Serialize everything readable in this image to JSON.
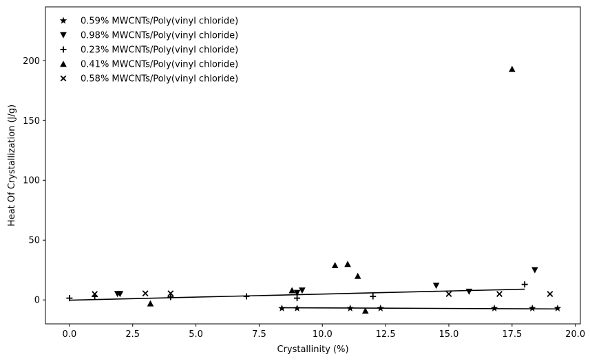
{
  "chart_data": {
    "type": "scatter",
    "xlabel": "Crystallinity (%)",
    "ylabel": "Heat Of Crystallization (J/g)",
    "xlim": [
      -0.95,
      20.2
    ],
    "ylim": [
      -20,
      245
    ],
    "xticks": [
      "0.0",
      "2.5",
      "5.0",
      "7.5",
      "10.0",
      "12.5",
      "15.0",
      "17.5",
      "20.0"
    ],
    "xtick_values": [
      0,
      2.5,
      5,
      7.5,
      10,
      12.5,
      15,
      17.5,
      20
    ],
    "yticks": [
      "0",
      "50",
      "100",
      "150",
      "200"
    ],
    "ytick_values": [
      0,
      50,
      100,
      150,
      200
    ],
    "legend_position": "upper-left",
    "grid": false,
    "color": "#000000",
    "series": [
      {
        "name": "0.59% MWCNTs/Poly(vinyl chloride)",
        "marker": "star",
        "points": [
          [
            8.4,
            -7
          ],
          [
            9.0,
            -7
          ],
          [
            11.1,
            -7
          ],
          [
            12.3,
            -7
          ],
          [
            16.8,
            -7
          ],
          [
            18.3,
            -7
          ],
          [
            19.3,
            -7
          ]
        ]
      },
      {
        "name": "0.98% MWCNTs/Poly(vinyl chloride)",
        "marker": "triangle-down",
        "points": [
          [
            1.9,
            5
          ],
          [
            2.0,
            5
          ],
          [
            9.0,
            6
          ],
          [
            9.2,
            8
          ],
          [
            14.5,
            12
          ],
          [
            15.8,
            7
          ],
          [
            18.4,
            25
          ]
        ]
      },
      {
        "name": "0.23% MWCNTs/Poly(vinyl chloride)",
        "marker": "plus",
        "points": [
          [
            0.0,
            1.5
          ],
          [
            1.0,
            3
          ],
          [
            4.0,
            2.5
          ],
          [
            7.0,
            3
          ],
          [
            9.0,
            1.5
          ],
          [
            12.0,
            3
          ],
          [
            18.0,
            13
          ]
        ]
      },
      {
        "name": "0.41% MWCNTs/Poly(vinyl chloride)",
        "marker": "triangle-up",
        "points": [
          [
            3.2,
            -3
          ],
          [
            8.8,
            8
          ],
          [
            10.5,
            29
          ],
          [
            11.0,
            30
          ],
          [
            11.4,
            20
          ],
          [
            11.7,
            -9
          ],
          [
            17.5,
            193
          ]
        ]
      },
      {
        "name": "0.58% MWCNTs/Poly(vinyl chloride)",
        "marker": "x",
        "points": [
          [
            1.0,
            5
          ],
          [
            3.0,
            5.5
          ],
          [
            4.0,
            5.5
          ],
          [
            15.0,
            5
          ],
          [
            17.0,
            5
          ],
          [
            19.0,
            5
          ]
        ]
      }
    ],
    "lines": [
      {
        "x": [
          0.0,
          18.0
        ],
        "y": [
          -0.2,
          9
        ]
      },
      {
        "x": [
          8.4,
          19.3
        ],
        "y": [
          -6.5,
          -7.5
        ]
      }
    ]
  }
}
